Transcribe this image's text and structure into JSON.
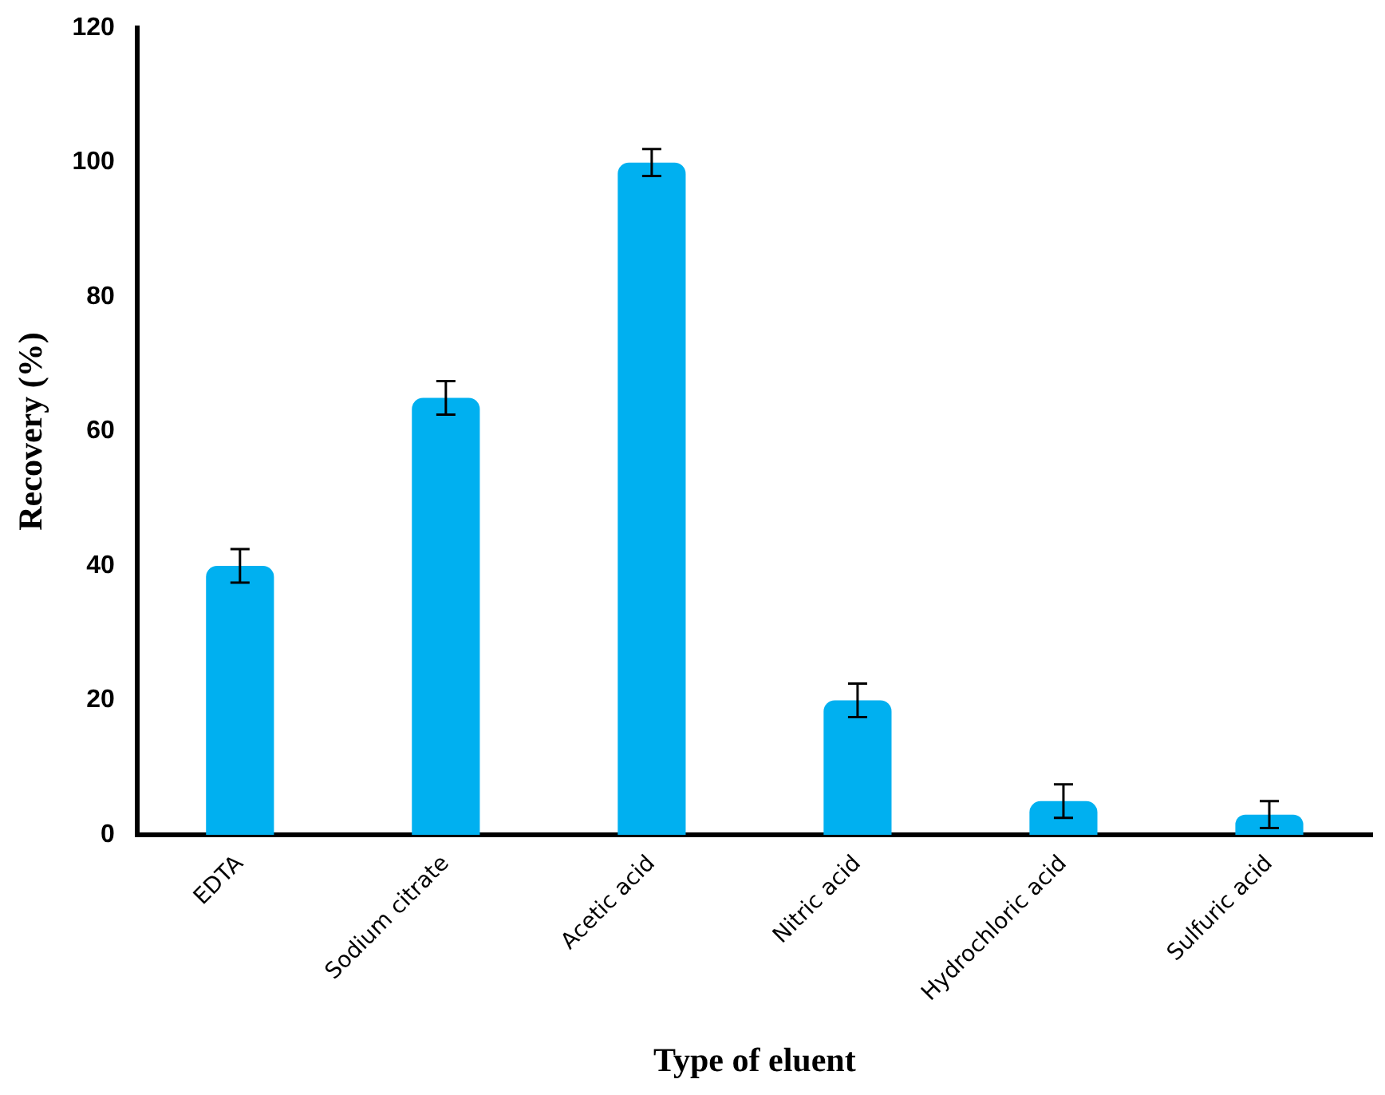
{
  "chart_data": {
    "type": "bar",
    "xlabel": "Type of eluent",
    "ylabel": "Recovery (%)",
    "categories": [
      "EDTA",
      "Sodium citrate",
      "Acetic acid",
      "Nitric acid",
      "Hydrochloric acid",
      "Sulfuric acid"
    ],
    "values": [
      40,
      65,
      100,
      20,
      5,
      3
    ],
    "errors": [
      2.5,
      2.5,
      2,
      2.5,
      2.5,
      2
    ],
    "color": "#00b0f0",
    "ylim": [
      0,
      120
    ],
    "yticks": [
      0,
      20,
      40,
      60,
      80,
      100,
      120
    ],
    "grid": false,
    "legend": false
  }
}
